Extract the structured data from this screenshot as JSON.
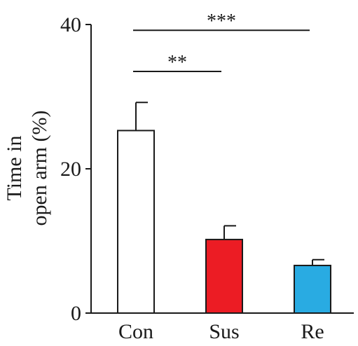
{
  "chart_data": {
    "type": "bar",
    "ylabel_lines": [
      "Time in",
      "open arm (%)"
    ],
    "xlabel": "",
    "categories": [
      "Con",
      "Sus",
      "Re"
    ],
    "values": [
      25.3,
      10.2,
      6.6
    ],
    "error_plus": [
      3.9,
      1.9,
      0.8
    ],
    "bar_colors": [
      "#ffffff",
      "#ec1c24",
      "#29abe2"
    ],
    "ylim": [
      0,
      40
    ],
    "yticks": [
      0,
      20,
      40
    ],
    "ytick_labels": [
      "0",
      "20",
      "40"
    ],
    "grid": false,
    "significance": [
      {
        "from": "Con",
        "to": "Sus",
        "label": "**",
        "level": 33.5
      },
      {
        "from": "Con",
        "to": "Re",
        "label": "***",
        "level": 39.2
      }
    ]
  }
}
